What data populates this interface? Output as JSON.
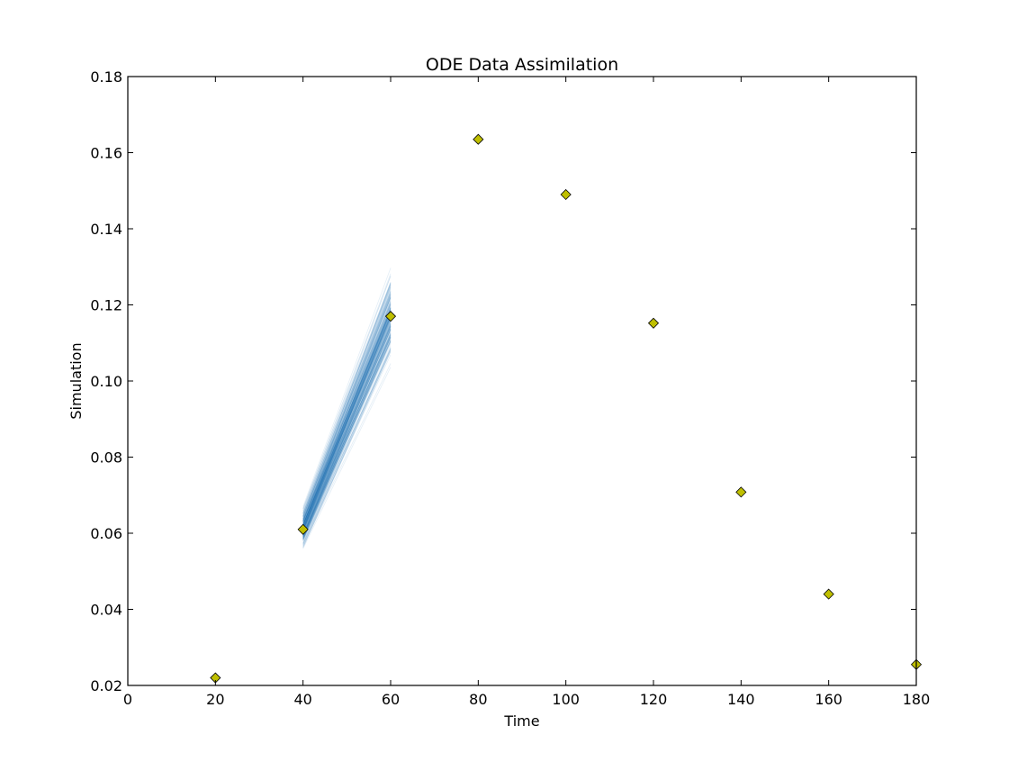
{
  "chart_data": {
    "type": "scatter",
    "title": "ODE Data Assimilation",
    "xlabel": "Time",
    "ylabel": "Simulation",
    "xlim": [
      0,
      180
    ],
    "ylim": [
      0.02,
      0.18
    ],
    "xticks": [
      0,
      20,
      40,
      60,
      80,
      100,
      120,
      140,
      160,
      180
    ],
    "xtick_labels": [
      "0",
      "20",
      "40",
      "60",
      "80",
      "100",
      "120",
      "140",
      "160",
      "180"
    ],
    "yticks": [
      0.02,
      0.04,
      0.06,
      0.08,
      0.1,
      0.12,
      0.14,
      0.16,
      0.18
    ],
    "ytick_labels": [
      "0.02",
      "0.04",
      "0.06",
      "0.08",
      "0.10",
      "0.12",
      "0.14",
      "0.16",
      "0.18"
    ],
    "grid": false,
    "observations": {
      "marker": "diamond",
      "color": "#bfbf00",
      "x": [
        20,
        40,
        60,
        80,
        100,
        120,
        140,
        160,
        180
      ],
      "y": [
        0.022,
        0.061,
        0.117,
        0.1635,
        0.149,
        0.1152,
        0.0708,
        0.044,
        0.0255
      ]
    },
    "ensemble": {
      "color": "#1f77b4",
      "x_start": 40,
      "x_end": 60,
      "members": 200,
      "start_range": [
        0.0555,
        0.069
      ],
      "end_range": [
        0.098,
        0.147
      ],
      "start_center": 0.0615,
      "end_center": 0.1175
    }
  }
}
